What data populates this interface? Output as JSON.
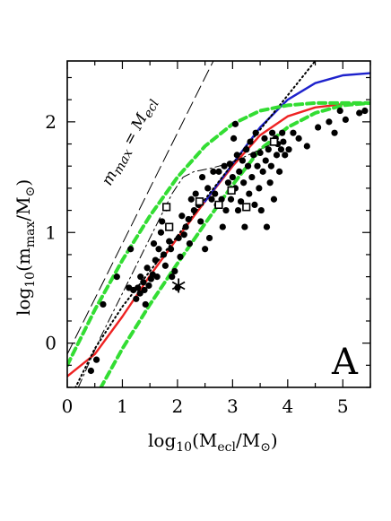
{
  "chart_data": {
    "type": "scatter",
    "panel_label": "A",
    "xlabel": {
      "main": "log",
      "base": "10",
      "open": "(M",
      "sub1": "ecl",
      "mid": "/M",
      "sub2": "⊙",
      "close": ")"
    },
    "ylabel": {
      "main": "log",
      "base": "10",
      "open": "(m",
      "sub1": "max",
      "mid": "/M",
      "sub2": "⊙",
      "close": ")"
    },
    "line_annotation": {
      "left": "m",
      "left_sub": "max",
      "eq": "= M",
      "right_sub": "ecl"
    },
    "xlim": [
      0,
      5.5
    ],
    "ylim": [
      -0.4,
      2.55
    ],
    "x_ticks": [
      0,
      1,
      2,
      3,
      4,
      5
    ],
    "y_ticks": [
      0,
      1,
      2
    ],
    "grid": false,
    "colors": {
      "red": "#ee2222",
      "blue": "#1e22cc",
      "green": "#33dd33",
      "black": "#000000"
    },
    "series": [
      {
        "marker": "filled-circle",
        "points": [
          [
            1.12,
            0.5
          ],
          [
            1.15,
            0.85
          ],
          [
            1.2,
            0.48
          ],
          [
            1.25,
            0.4
          ],
          [
            1.28,
            0.5
          ],
          [
            1.32,
            0.45
          ],
          [
            1.33,
            0.6
          ],
          [
            1.38,
            0.55
          ],
          [
            1.4,
            0.48
          ],
          [
            1.42,
            0.35
          ],
          [
            1.45,
            0.68
          ],
          [
            1.48,
            0.52
          ],
          [
            1.52,
            0.58
          ],
          [
            1.55,
            0.62
          ],
          [
            1.57,
            0.9
          ],
          [
            1.6,
            0.75
          ],
          [
            1.63,
            0.6
          ],
          [
            1.66,
            0.85
          ],
          [
            1.7,
            1.0
          ],
          [
            1.72,
            1.1
          ],
          [
            1.75,
            0.8
          ],
          [
            1.78,
            0.7
          ],
          [
            1.8,
            1.22
          ],
          [
            1.85,
            0.92
          ],
          [
            1.88,
            0.85
          ],
          [
            1.9,
            0.6
          ],
          [
            1.95,
            0.65
          ],
          [
            2.0,
            0.5
          ],
          [
            2.02,
            0.95
          ],
          [
            2.05,
            0.78
          ],
          [
            2.08,
            1.15
          ],
          [
            2.12,
            0.98
          ],
          [
            2.15,
            1.05
          ],
          [
            2.2,
            1.12
          ],
          [
            2.22,
            0.9
          ],
          [
            2.25,
            1.3
          ],
          [
            2.3,
            1.2
          ],
          [
            2.33,
            1.35
          ],
          [
            2.38,
            1.25
          ],
          [
            2.42,
            1.1
          ],
          [
            2.45,
            1.5
          ],
          [
            2.5,
            0.85
          ],
          [
            2.55,
            1.4
          ],
          [
            2.58,
            0.95
          ],
          [
            2.62,
            1.3
          ],
          [
            2.65,
            1.55
          ],
          [
            2.68,
            1.35
          ],
          [
            2.72,
            1.25
          ],
          [
            2.75,
            1.55
          ],
          [
            2.8,
            1.3
          ],
          [
            2.82,
            1.05
          ],
          [
            2.85,
            1.6
          ],
          [
            2.88,
            1.2
          ],
          [
            2.92,
            1.45
          ],
          [
            2.95,
            1.62
          ],
          [
            2.97,
            1.3
          ],
          [
            3.0,
            1.5
          ],
          [
            3.02,
            1.85
          ],
          [
            3.05,
            1.4
          ],
          [
            3.08,
            1.7
          ],
          [
            3.1,
            1.2
          ],
          [
            3.12,
            1.55
          ],
          [
            3.15,
            1.28
          ],
          [
            3.18,
            1.65
          ],
          [
            3.2,
            1.45
          ],
          [
            3.22,
            1.05
          ],
          [
            3.25,
            1.75
          ],
          [
            3.28,
            1.6
          ],
          [
            3.3,
            1.35
          ],
          [
            3.32,
            1.82
          ],
          [
            3.35,
            1.5
          ],
          [
            3.38,
            1.7
          ],
          [
            3.4,
            1.25
          ],
          [
            3.42,
            1.9
          ],
          [
            3.45,
            1.6
          ],
          [
            3.48,
            1.4
          ],
          [
            3.5,
            1.72
          ],
          [
            3.52,
            1.2
          ],
          [
            3.55,
            1.55
          ],
          [
            3.58,
            1.85
          ],
          [
            3.6,
            1.65
          ],
          [
            3.62,
            1.05
          ],
          [
            3.65,
            1.75
          ],
          [
            3.68,
            1.45
          ],
          [
            3.7,
            1.6
          ],
          [
            3.72,
            1.9
          ],
          [
            3.75,
            1.3
          ],
          [
            3.78,
            1.85
          ],
          [
            3.8,
            1.7
          ],
          [
            3.82,
            1.8
          ],
          [
            3.85,
            1.55
          ],
          [
            3.88,
            1.75
          ],
          [
            3.9,
            1.9
          ],
          [
            3.92,
            1.82
          ],
          [
            3.95,
            1.7
          ],
          [
            4.02,
            1.75
          ],
          [
            4.1,
            1.9
          ],
          [
            4.2,
            1.85
          ],
          [
            4.35,
            1.78
          ],
          [
            4.55,
            1.95
          ],
          [
            4.75,
            2.0
          ],
          [
            4.85,
            1.9
          ],
          [
            4.95,
            2.1
          ],
          [
            5.05,
            2.02
          ],
          [
            5.3,
            2.08
          ],
          [
            5.4,
            2.1
          ],
          [
            3.05,
            1.98
          ],
          [
            0.43,
            -0.25
          ],
          [
            0.53,
            -0.15
          ],
          [
            0.65,
            0.35
          ],
          [
            0.9,
            0.6
          ]
        ]
      },
      {
        "marker": "open-square",
        "points": [
          [
            1.8,
            1.23
          ],
          [
            1.85,
            1.05
          ],
          [
            2.4,
            1.28
          ],
          [
            2.75,
            1.25
          ],
          [
            2.98,
            1.38
          ],
          [
            3.25,
            1.23
          ],
          [
            3.75,
            1.82
          ]
        ]
      },
      {
        "marker": "asterisk",
        "points": [
          [
            2.02,
            0.52
          ]
        ]
      }
    ],
    "curves": [
      {
        "style": "solid",
        "color": "red",
        "points": [
          [
            0,
            -0.3
          ],
          [
            0.5,
            -0.1
          ],
          [
            1.0,
            0.24
          ],
          [
            1.5,
            0.61
          ],
          [
            2.0,
            0.95
          ],
          [
            2.5,
            1.28
          ],
          [
            3.0,
            1.6
          ],
          [
            3.5,
            1.88
          ],
          [
            4.0,
            2.05
          ],
          [
            4.5,
            2.13
          ],
          [
            5.0,
            2.16
          ],
          [
            5.5,
            2.17
          ]
        ]
      },
      {
        "style": "solid",
        "color": "blue",
        "points": [
          [
            2.5,
            1.28
          ],
          [
            3.0,
            1.62
          ],
          [
            3.5,
            1.95
          ],
          [
            4.0,
            2.2
          ],
          [
            4.5,
            2.35
          ],
          [
            5.0,
            2.42
          ],
          [
            5.5,
            2.44
          ]
        ]
      },
      {
        "style": "dotted",
        "color": "black",
        "points": [
          [
            0.0,
            -0.55
          ],
          [
            0.5,
            -0.05
          ],
          [
            1.0,
            0.33
          ],
          [
            1.5,
            0.65
          ],
          [
            2.0,
            0.97
          ],
          [
            2.5,
            1.3
          ],
          [
            3.0,
            1.62
          ],
          [
            3.5,
            1.93
          ],
          [
            4.0,
            2.24
          ],
          [
            4.5,
            2.55
          ]
        ]
      },
      {
        "style": "dashed",
        "color": "green",
        "points": [
          [
            0,
            -0.2
          ],
          [
            0.5,
            0.3
          ],
          [
            1.0,
            0.75
          ],
          [
            1.5,
            1.15
          ],
          [
            2.0,
            1.5
          ],
          [
            2.5,
            1.78
          ],
          [
            3.0,
            1.98
          ],
          [
            3.5,
            2.1
          ],
          [
            4.0,
            2.15
          ],
          [
            4.5,
            2.17
          ],
          [
            5.0,
            2.17
          ],
          [
            5.5,
            2.17
          ]
        ]
      },
      {
        "style": "dashed",
        "color": "green",
        "points": [
          [
            0.5,
            -0.5
          ],
          [
            1.0,
            -0.05
          ],
          [
            1.5,
            0.35
          ],
          [
            2.0,
            0.72
          ],
          [
            2.5,
            1.08
          ],
          [
            3.0,
            1.43
          ],
          [
            3.5,
            1.75
          ],
          [
            4.0,
            1.95
          ],
          [
            4.5,
            2.08
          ],
          [
            5.0,
            2.15
          ],
          [
            5.5,
            2.17
          ]
        ]
      },
      {
        "style": "long-dash",
        "color": "black",
        "points": [
          [
            0.0,
            -0.1
          ],
          [
            0.5,
            0.4
          ],
          [
            1.0,
            0.9
          ],
          [
            1.5,
            1.4
          ],
          [
            2.0,
            1.9
          ],
          [
            2.5,
            2.4
          ],
          [
            2.65,
            2.55
          ]
        ]
      },
      {
        "style": "dash-dot",
        "color": "black",
        "points": [
          [
            0.2,
            -0.4
          ],
          [
            0.6,
            0.05
          ],
          [
            1.0,
            0.45
          ],
          [
            1.5,
            0.95
          ],
          [
            1.9,
            1.35
          ],
          [
            2.1,
            1.5
          ],
          [
            2.3,
            1.55
          ],
          [
            2.6,
            1.58
          ],
          [
            2.9,
            1.62
          ],
          [
            3.2,
            1.68
          ],
          [
            3.5,
            1.75
          ],
          [
            3.8,
            1.82
          ]
        ]
      }
    ]
  }
}
